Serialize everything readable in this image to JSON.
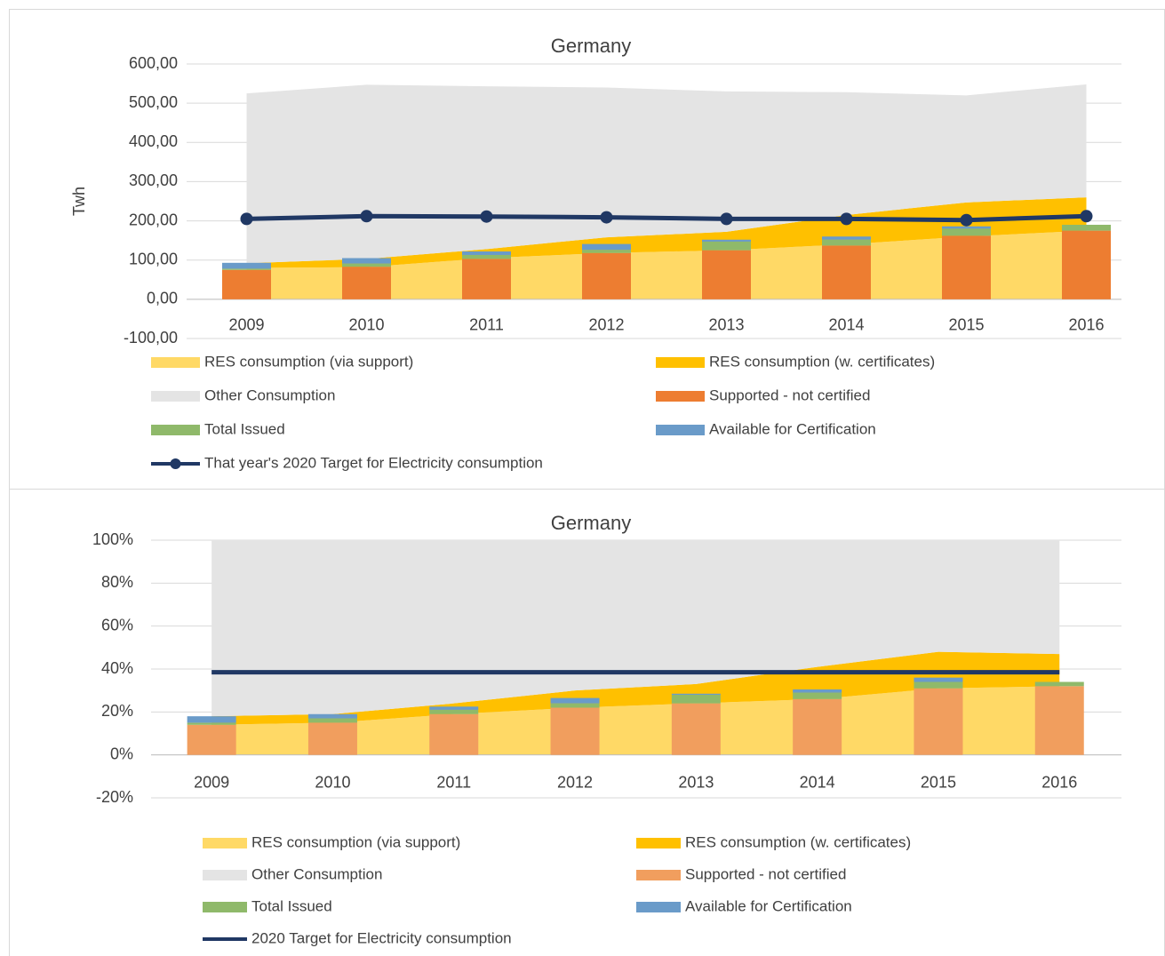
{
  "chart_data": [
    {
      "type": "combo",
      "title": "Germany",
      "y_label": "Twh",
      "legend": "bottom",
      "grid": true,
      "categories": [
        "2009",
        "2010",
        "2011",
        "2012",
        "2013",
        "2014",
        "2015",
        "2016"
      ],
      "ylim": [
        -100,
        600
      ],
      "yticks": [
        {
          "value": -100,
          "label": "-100,00"
        },
        {
          "value": 0,
          "label": "0,00"
        },
        {
          "value": 100,
          "label": "100,00"
        },
        {
          "value": 200,
          "label": "200,00"
        },
        {
          "value": 300,
          "label": "300,00"
        },
        {
          "value": 400,
          "label": "400,00"
        },
        {
          "value": 500,
          "label": "500,00"
        },
        {
          "value": 600,
          "label": "600,00"
        }
      ],
      "series": [
        {
          "name": "RES consumption (via support)",
          "kind": "area",
          "color": "#ffd966",
          "values": [
            80,
            82,
            105,
            118,
            125,
            140,
            160,
            175
          ]
        },
        {
          "name": "RES consumption (w. certificates)",
          "kind": "area",
          "color": "#ffc000",
          "values": [
            12,
            21,
            23,
            40,
            47,
            75,
            87,
            85
          ]
        },
        {
          "name": "Other Consumption",
          "kind": "area",
          "color": "#e4e4e4",
          "values": [
            433,
            444,
            415,
            382,
            358,
            313,
            273,
            288
          ]
        },
        {
          "name": "Supported - not certified",
          "kind": "bar",
          "color": "#ed7d31",
          "values": [
            75,
            83,
            103,
            118,
            125,
            137,
            162,
            175
          ]
        },
        {
          "name": "Total Issued",
          "kind": "bar",
          "color": "#8fb96a",
          "values": [
            3,
            8,
            10,
            8,
            22,
            15,
            18,
            15
          ]
        },
        {
          "name": "Available for Certification",
          "kind": "bar",
          "color": "#6a9bc9",
          "values": [
            15,
            14,
            9,
            15,
            5,
            8,
            6,
            0
          ]
        },
        {
          "name": "That year's 2020 Target for Electricity consumption",
          "kind": "line",
          "marker": true,
          "color": "#203864",
          "values": [
            205,
            212,
            211,
            209,
            205,
            205,
            202,
            212
          ]
        }
      ]
    },
    {
      "type": "combo",
      "title": "Germany",
      "legend": "bottom",
      "grid": true,
      "categories": [
        "2009",
        "2010",
        "2011",
        "2012",
        "2013",
        "2014",
        "2015",
        "2016"
      ],
      "ylim": [
        -20,
        100
      ],
      "yticks": [
        {
          "value": -20,
          "label": "-20%"
        },
        {
          "value": 0,
          "label": "0%"
        },
        {
          "value": 20,
          "label": "20%"
        },
        {
          "value": 40,
          "label": "40%"
        },
        {
          "value": 60,
          "label": "60%"
        },
        {
          "value": 80,
          "label": "80%"
        },
        {
          "value": 100,
          "label": "100%"
        }
      ],
      "series": [
        {
          "name": "RES consumption (via support)",
          "kind": "area",
          "color": "#ffd966",
          "values": [
            14,
            15,
            19,
            22,
            24,
            26,
            31,
            32
          ]
        },
        {
          "name": "RES consumption (w. certificates)",
          "kind": "area",
          "color": "#ffc000",
          "values": [
            4,
            4,
            5,
            8,
            9,
            15,
            17,
            15
          ]
        },
        {
          "name": "Other Consumption",
          "kind": "area",
          "color": "#e4e4e4",
          "values": [
            82,
            81,
            76,
            70,
            67,
            59,
            52,
            53
          ]
        },
        {
          "name": "Supported - not certified",
          "kind": "bar",
          "color": "#f19e5e",
          "values": [
            14,
            15,
            19,
            22,
            24,
            26,
            31,
            32
          ]
        },
        {
          "name": "Total Issued",
          "kind": "bar",
          "color": "#8fb96a",
          "values": [
            1,
            2,
            2,
            2,
            4,
            3,
            3,
            2
          ]
        },
        {
          "name": "Available for Certification",
          "kind": "bar",
          "color": "#6a9bc9",
          "values": [
            3,
            2,
            1.5,
            2.5,
            0.5,
            1.5,
            2,
            0
          ]
        },
        {
          "name": "2020 Target for Electricity consumption",
          "kind": "line",
          "marker": false,
          "color": "#203864",
          "values": [
            38.5,
            38.5,
            38.5,
            38.5,
            38.5,
            38.5,
            38.5,
            38.5
          ]
        }
      ]
    }
  ]
}
